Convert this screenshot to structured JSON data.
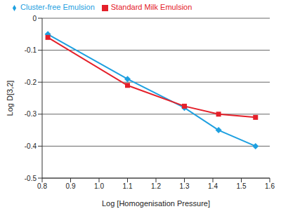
{
  "chart_data": {
    "type": "line",
    "x_label": "Log [Homogenisation Pressure]",
    "y_label": "Log D[3,2]",
    "x": [
      0.82,
      1.1,
      1.3,
      1.42,
      1.55
    ],
    "series": [
      {
        "name": "Cluster-free Emulsion",
        "color": "#1ea0e0",
        "marker": "diamond",
        "values": [
          -0.05,
          -0.19,
          -0.28,
          -0.35,
          -0.4
        ]
      },
      {
        "name": "Standard Milk Emulsion",
        "color": "#e4202a",
        "marker": "square",
        "values": [
          -0.06,
          -0.21,
          -0.275,
          -0.3,
          -0.31
        ]
      }
    ],
    "xlim": [
      0.8,
      1.6
    ],
    "xticks": [
      0.8,
      0.9,
      {
        "value": 1,
        "label": "1.0"
      },
      1.1,
      1.2,
      1.3,
      1.4,
      1.5,
      1.6
    ],
    "ylim": [
      -0.5,
      0
    ],
    "yticks": [
      0,
      -0.1,
      -0.2,
      -0.3,
      -0.4,
      -0.5
    ],
    "grid": true,
    "legend": "top"
  }
}
